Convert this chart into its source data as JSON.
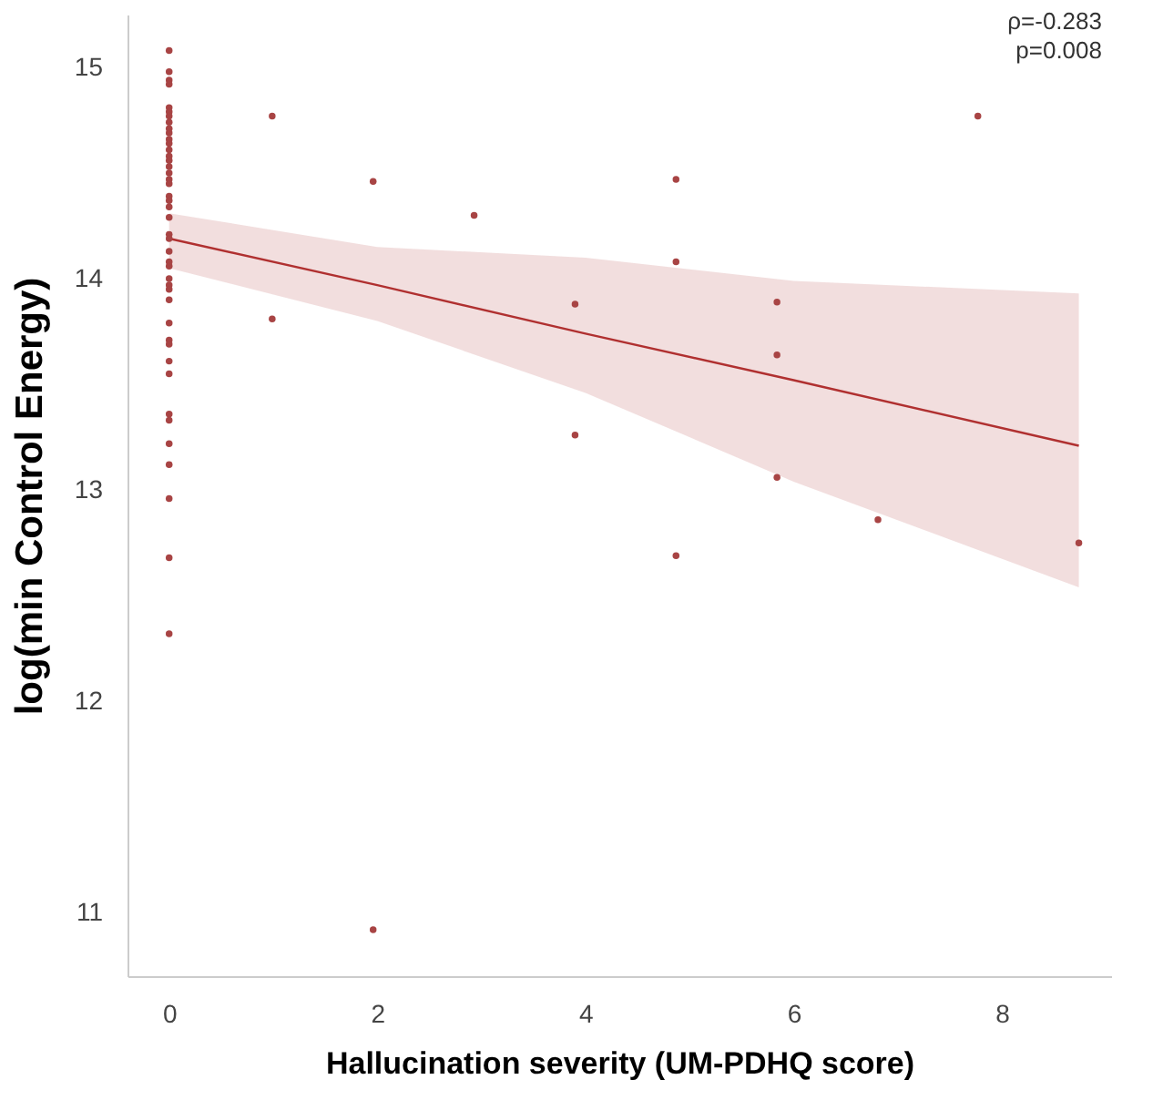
{
  "chart_data": {
    "type": "scatter",
    "xlabel": "Hallucination severity (UM-PDHQ score)",
    "ylabel": "log(min Control Energy)",
    "annotations": [
      "ρ=-0.283",
      "p=0.008"
    ],
    "xlim": [
      -0.4,
      9.05
    ],
    "ylim": [
      10.7,
      15.25
    ],
    "xticks": [
      0,
      2,
      4,
      6,
      8
    ],
    "yticks": [
      11,
      12,
      13,
      14,
      15
    ],
    "marker": "circle",
    "series": [
      {
        "color": "#a84444",
        "x": [
          0,
          0,
          0,
          0,
          0,
          0,
          0,
          0,
          0,
          0,
          0,
          0,
          0,
          0,
          0,
          0,
          0,
          0,
          0,
          0,
          0,
          0,
          0,
          0,
          0,
          0,
          0,
          0,
          0,
          0,
          0,
          0,
          0,
          0,
          0,
          0,
          0,
          0,
          0,
          0,
          0,
          0,
          0,
          0,
          0.99,
          0.99,
          1.96,
          1.96,
          2.93,
          3.9,
          3.9,
          4.87,
          4.87,
          4.87,
          5.84,
          5.84,
          5.84,
          6.81,
          7.77,
          8.74
        ],
        "values": [
          15.08,
          14.98,
          14.94,
          14.92,
          14.81,
          14.79,
          14.77,
          14.74,
          14.71,
          14.69,
          14.66,
          14.64,
          14.61,
          14.58,
          14.56,
          14.53,
          14.5,
          14.47,
          14.45,
          14.39,
          14.37,
          14.34,
          14.29,
          14.21,
          14.19,
          14.13,
          14.08,
          14.06,
          14.0,
          13.97,
          13.95,
          13.9,
          13.79,
          13.71,
          13.69,
          13.61,
          13.55,
          13.36,
          13.33,
          13.22,
          13.12,
          12.96,
          12.68,
          12.32,
          14.77,
          13.81,
          14.46,
          10.92,
          14.3,
          13.88,
          13.26,
          14.47,
          14.08,
          12.69,
          13.89,
          13.64,
          13.06,
          12.86,
          14.77,
          12.75
        ]
      },
      {
        "type": "line",
        "color": "#b03030",
        "line_style": "solid",
        "marker": "none",
        "x": [
          0,
          2,
          4,
          6,
          8.74
        ],
        "values": [
          14.19,
          13.97,
          13.74,
          13.52,
          13.21
        ],
        "lower": [
          14.05,
          13.8,
          13.46,
          13.04,
          12.54
        ],
        "upper": [
          14.31,
          14.15,
          14.1,
          13.99,
          13.93
        ]
      }
    ]
  }
}
